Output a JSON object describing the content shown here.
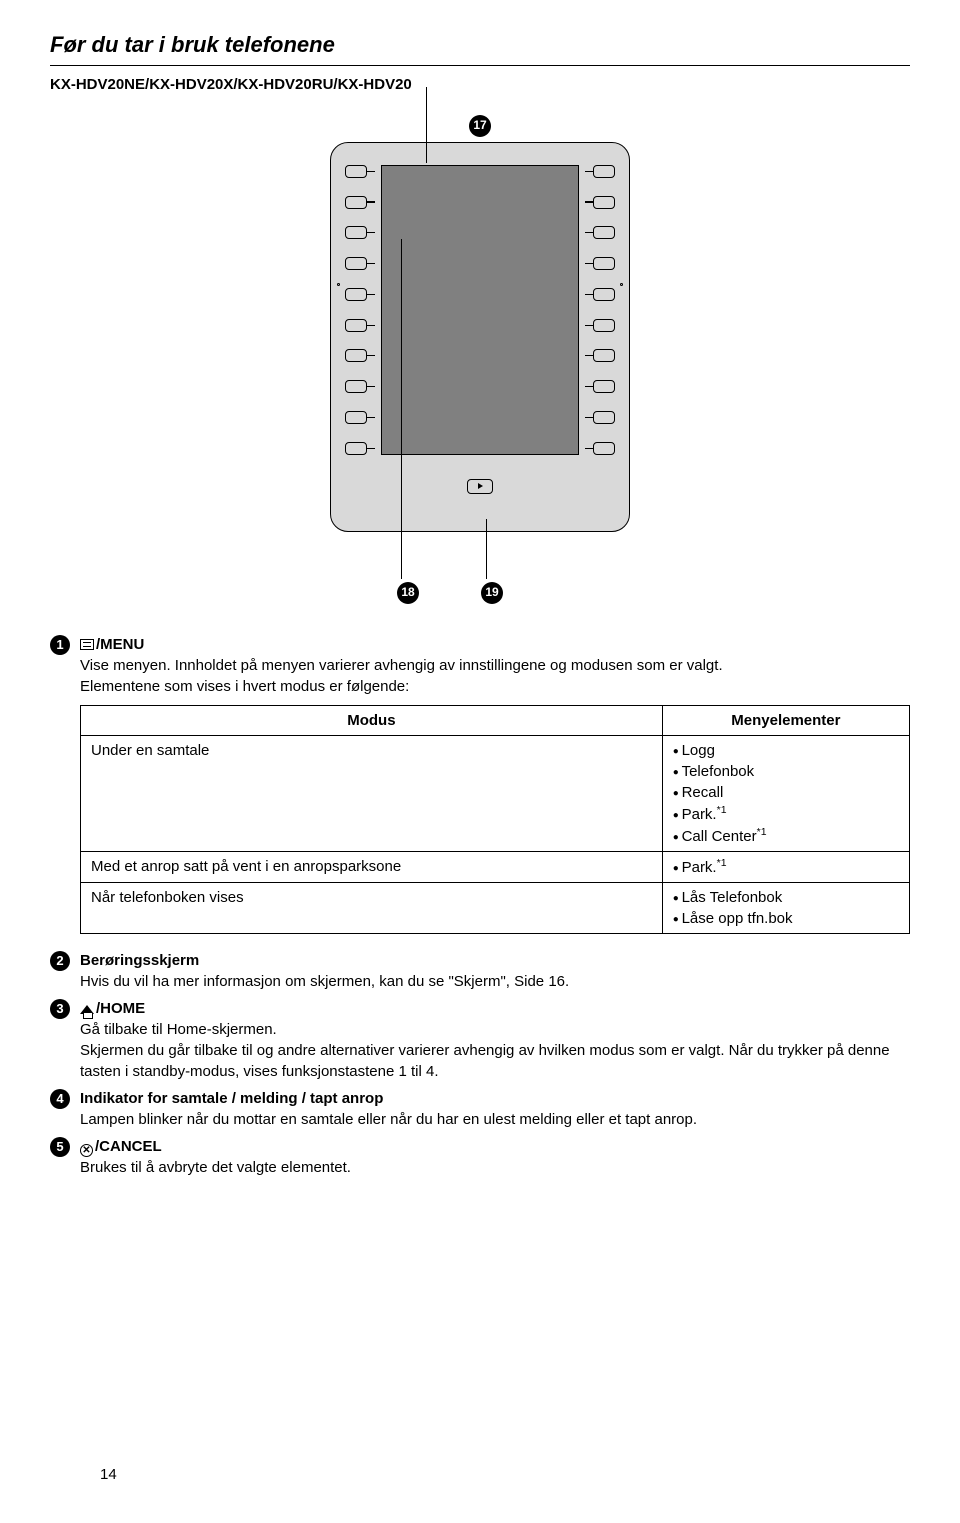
{
  "header": {
    "title": "Før du tar i bruk telefonene",
    "models": "KX-HDV20NE/KX-HDV20X/KX-HDV20RU/KX-HDV20"
  },
  "callouts": {
    "c17": "17",
    "c18": "18",
    "c19": "19"
  },
  "items": [
    {
      "num": "1",
      "icon": "menu",
      "title": "/MENU",
      "desc1": "Vise menyen. Innholdet på menyen varierer avhengig av innstillingene og modusen som er valgt.",
      "desc2": "Elementene som vises i hvert modus er følgende:"
    },
    {
      "num": "2",
      "title": "Berøringsskjerm",
      "desc": "Hvis du vil ha mer informasjon om skjermen, kan du se \"Skjerm\", Side 16."
    },
    {
      "num": "3",
      "icon": "home",
      "title": "/HOME",
      "desc1": "Gå tilbake til Home-skjermen.",
      "desc2": "Skjermen du går tilbake til og andre alternativer varierer avhengig av hvilken modus som er valgt. Når du trykker på denne tasten i standby-modus, vises funksjonstastene 1 til 4."
    },
    {
      "num": "4",
      "title": "Indikator for samtale / melding / tapt anrop",
      "desc": "Lampen blinker når du mottar en samtale eller når du har en ulest melding eller et tapt anrop."
    },
    {
      "num": "5",
      "icon": "cancel",
      "title": "/CANCEL",
      "desc": "Brukes til å avbryte det valgte elementet."
    }
  ],
  "table": {
    "headers": {
      "col1": "Modus",
      "col2": "Menyelementer"
    },
    "rows": [
      {
        "modus": "Under en samtale",
        "elements": [
          "Logg",
          "Telefonbok",
          "Recall",
          "Park.<sup>*1</sup>",
          "Call Center<sup>*1</sup>"
        ]
      },
      {
        "modus": "Med et anrop satt på vent i en anropsparksone",
        "elements": [
          "Park.<sup>*1</sup>"
        ]
      },
      {
        "modus": "Når telefonboken vises",
        "elements": [
          "Lås Telefonbok",
          "Låse opp tfn.bok"
        ]
      }
    ]
  },
  "pageNumber": "14",
  "colors": {
    "device_bg": "#d9d9d9",
    "screen_bg": "#808080",
    "text": "#000000",
    "page_bg": "#ffffff"
  }
}
